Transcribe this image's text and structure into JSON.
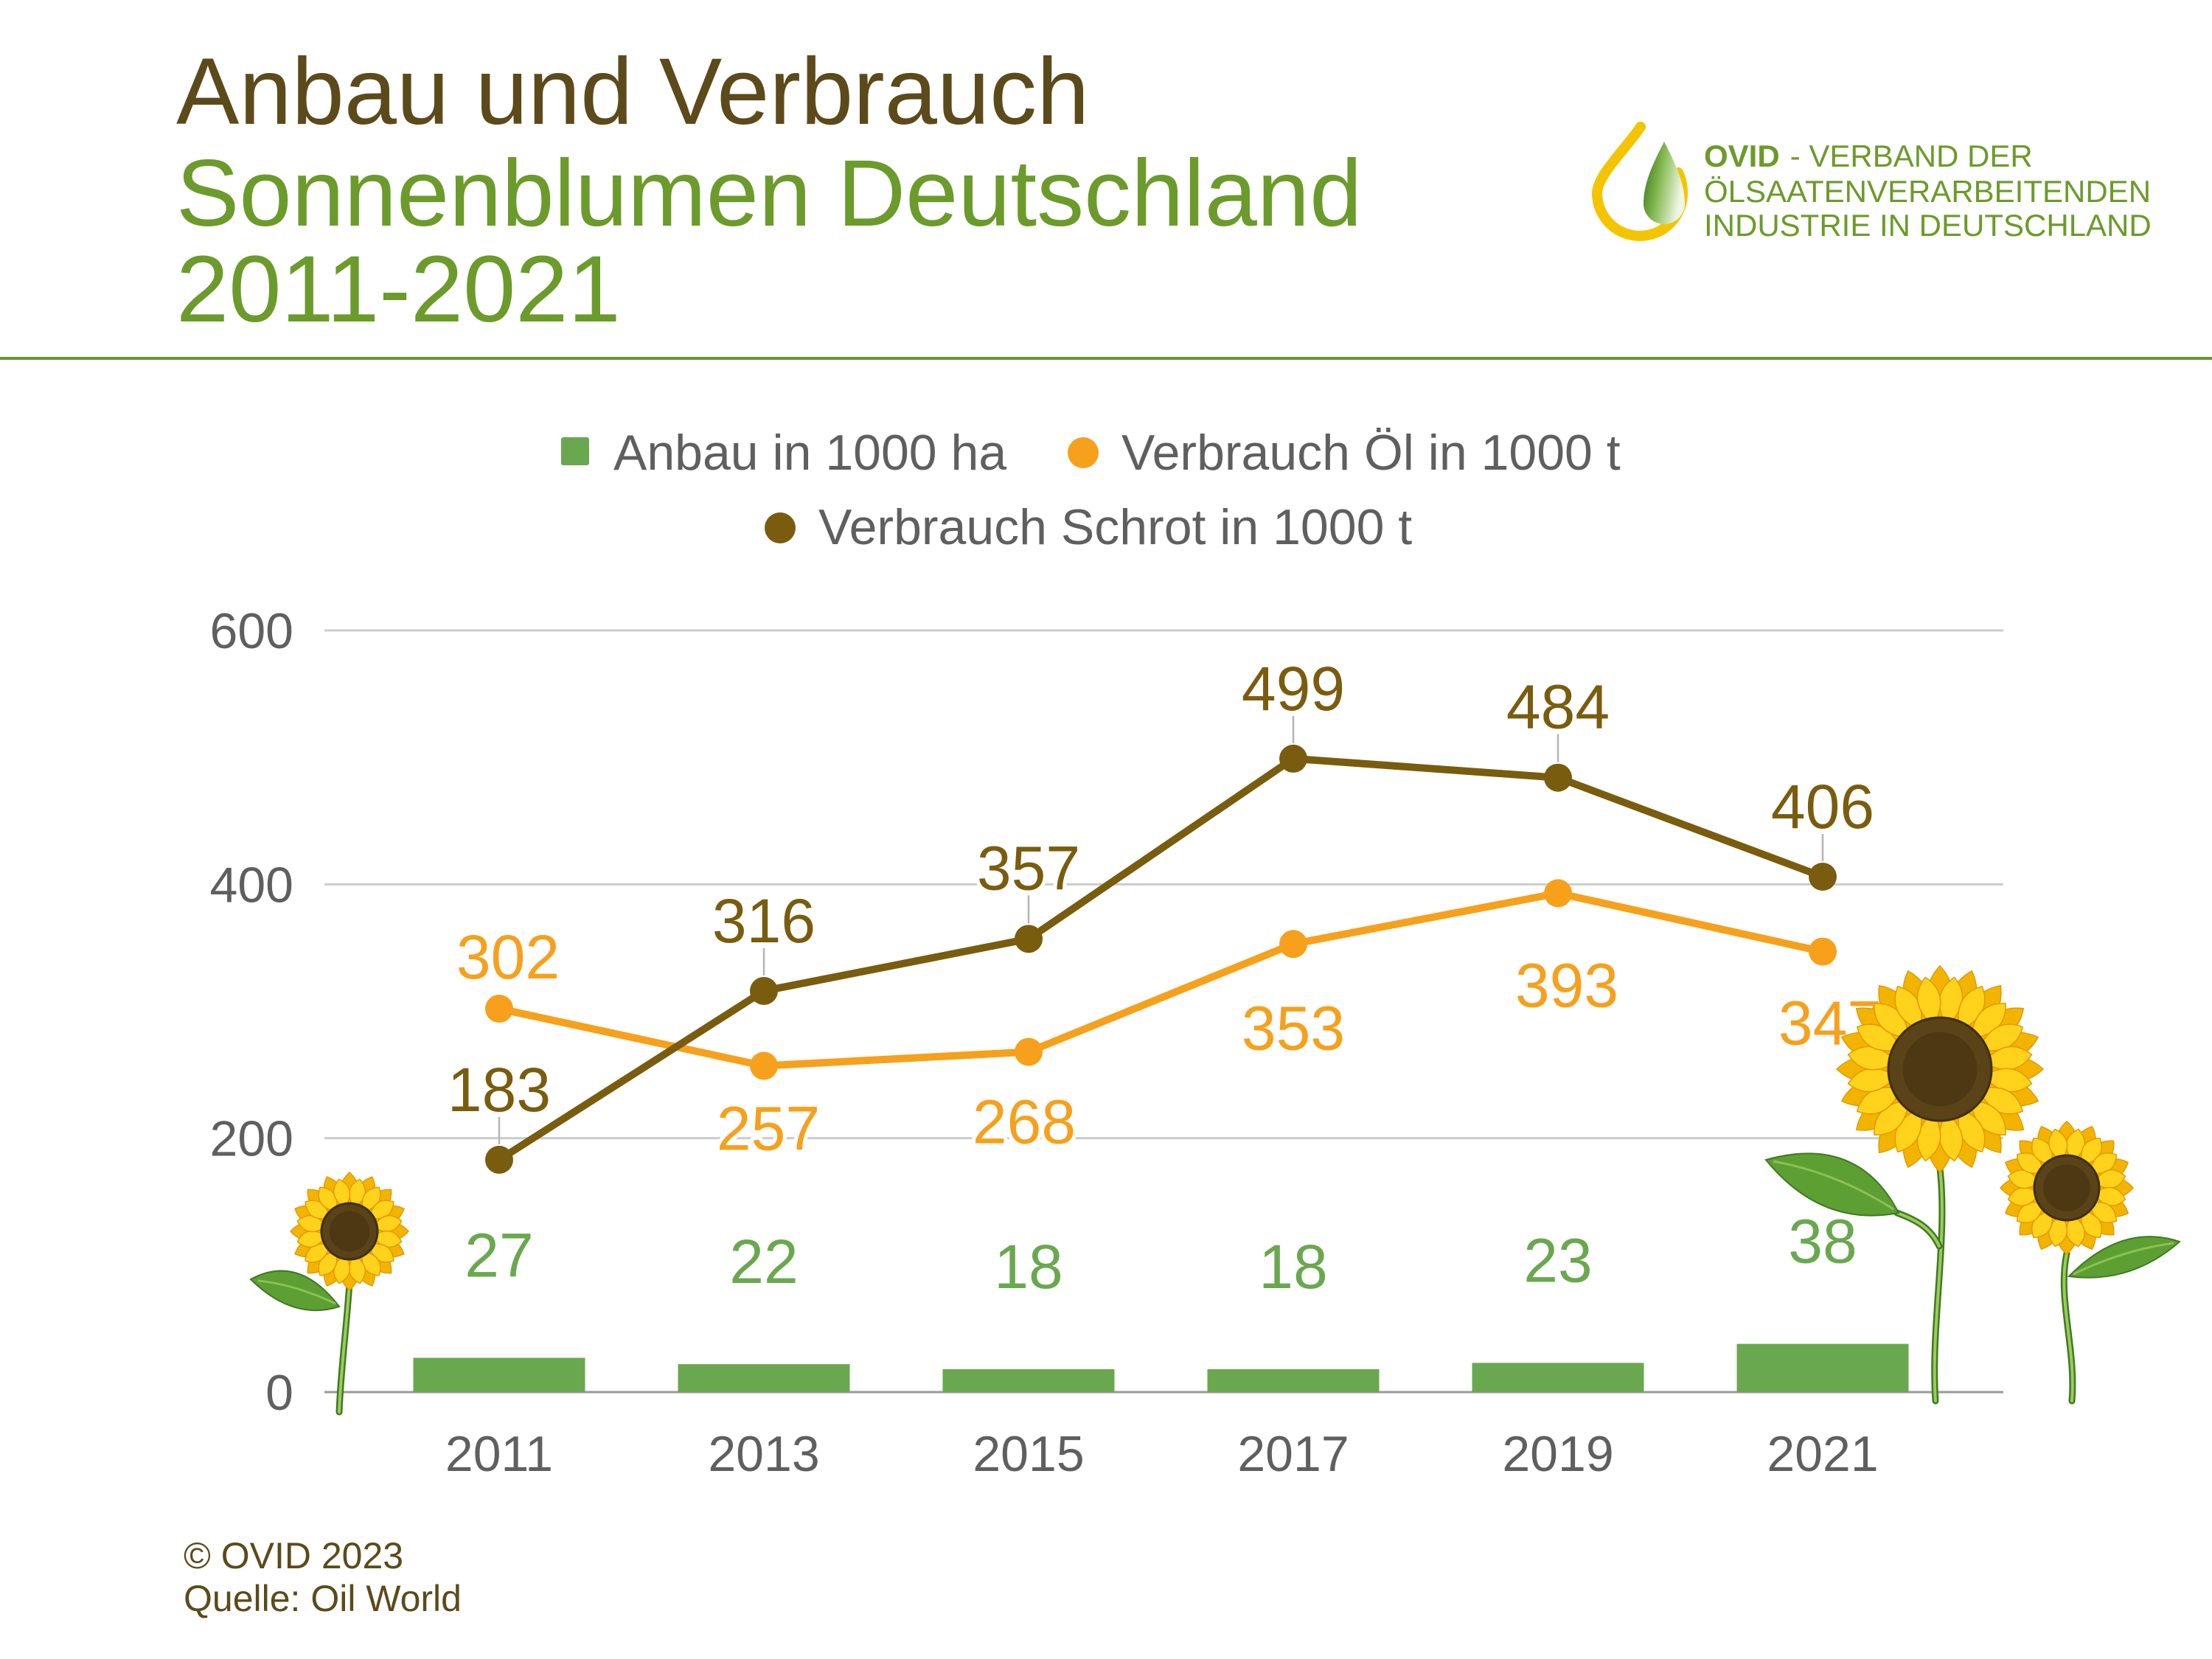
{
  "chart_data": {
    "type": "line",
    "title": [
      "Anbau und Verbrauch",
      "Sonnenblumen Deutschland",
      "2011-2021"
    ],
    "categories": [
      "2011",
      "2013",
      "2015",
      "2017",
      "2019",
      "2021"
    ],
    "series": [
      {
        "name": "Anbau in 1000 ha",
        "type": "bar",
        "values": [
          27,
          22,
          18,
          18,
          23,
          38
        ],
        "color": "#6aa84f"
      },
      {
        "name": "Verbrauch Öl in 1000 t",
        "type": "line",
        "values": [
          302,
          257,
          268,
          353,
          393,
          347
        ],
        "color": "#f7a01b"
      },
      {
        "name": "Verbrauch Schrot in 1000 t",
        "type": "line",
        "values": [
          183,
          316,
          357,
          499,
          484,
          406
        ],
        "color": "#7a5c0e"
      }
    ],
    "ylim": [
      0,
      600
    ],
    "y_ticks": [
      0,
      200,
      400,
      600
    ],
    "grid": true,
    "legend": "top",
    "data_labels": true
  },
  "logo": {
    "icon": "oil-drop-icon",
    "brand": "OVID",
    "line1": "- VERBAND DER",
    "line2": "ÖLSAATENVERARBEITENDEN",
    "line3": "INDUSTRIE IN DEUTSCHLAND"
  },
  "decor": {
    "icon": "sunflower-icon"
  },
  "footer": {
    "copyright": "© OVID 2023",
    "source": "Quelle: Oil World"
  },
  "colors": {
    "title_brown": "#5c4a1b",
    "title_green": "#6b9b2a",
    "rule": "#6e9530",
    "axis_text": "#5f5f5f",
    "grid": "#cccccc",
    "petal_outer": "#f3b400",
    "petal_inner": "#ffd21c",
    "flower_center": "#5a4318",
    "leaf": "#5e9f33"
  }
}
